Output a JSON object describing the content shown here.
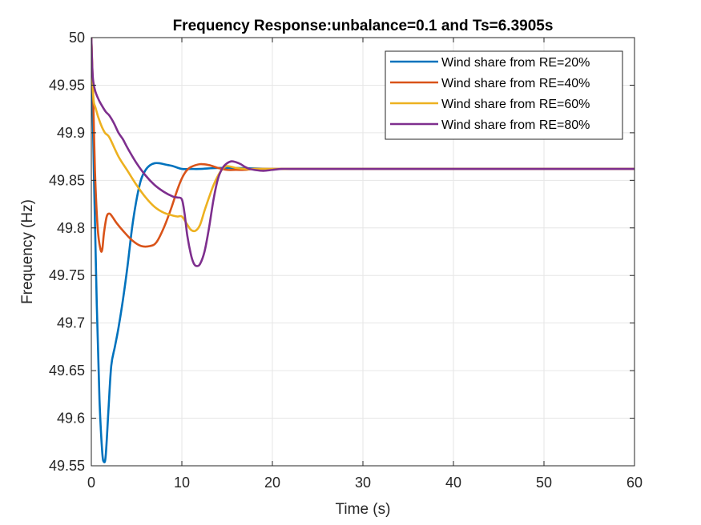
{
  "chart_data": {
    "type": "line",
    "title": "Frequency Response:unbalance=0.1 and Ts=6.3905s",
    "xlabel": "Time (s)",
    "ylabel": "Frequency (Hz)",
    "xlim": [
      0,
      60
    ],
    "ylim": [
      49.55,
      50
    ],
    "xticks": [
      "0",
      "10",
      "20",
      "30",
      "40",
      "50",
      "60"
    ],
    "yticks": [
      "49.55",
      "49.6",
      "49.65",
      "49.7",
      "49.75",
      "49.8",
      "49.85",
      "49.9",
      "49.95",
      "50"
    ],
    "grid": true,
    "legend_position": "top-right",
    "series": [
      {
        "name": "Wind share from RE=20%",
        "color": "#0072BD",
        "x": [
          0,
          0.3,
          0.6,
          0.9,
          1.2,
          1.4,
          1.6,
          1.9,
          2.2,
          2.6,
          3.0,
          3.5,
          4.0,
          4.5,
          5.0,
          5.5,
          6.0,
          6.5,
          7.0,
          7.5,
          8.0,
          8.5,
          9.0,
          10.0,
          11.0,
          12.0,
          14.0,
          16.0,
          20.0,
          25.0,
          30.0,
          40.0,
          50.0,
          60.0
        ],
        "y": [
          50.0,
          49.85,
          49.72,
          49.62,
          49.565,
          49.554,
          49.562,
          49.61,
          49.655,
          49.675,
          49.695,
          49.725,
          49.76,
          49.8,
          49.83,
          49.851,
          49.861,
          49.866,
          49.868,
          49.868,
          49.867,
          49.866,
          49.865,
          49.862,
          49.862,
          49.862,
          49.863,
          49.863,
          49.862,
          49.862,
          49.862,
          49.862,
          49.862,
          49.862
        ]
      },
      {
        "name": "Wind share from RE=40%",
        "color": "#D95319",
        "x": [
          0,
          0.2,
          0.4,
          0.7,
          1.0,
          1.2,
          1.4,
          1.7,
          2.0,
          2.3,
          2.8,
          3.5,
          4.5,
          5.5,
          6.5,
          7.2,
          8.0,
          8.8,
          9.5,
          10.0,
          10.5,
          11.0,
          12.0,
          13.0,
          14.0,
          15.0,
          16.0,
          17.0,
          18.0,
          20.0,
          25.0,
          30.0,
          40.0,
          50.0,
          60.0
        ],
        "y": [
          50.0,
          49.94,
          49.86,
          49.8,
          49.778,
          49.777,
          49.795,
          49.812,
          49.815,
          49.812,
          49.805,
          49.797,
          49.787,
          49.781,
          49.781,
          49.785,
          49.8,
          49.82,
          49.84,
          49.852,
          49.86,
          49.864,
          49.867,
          49.866,
          49.863,
          49.861,
          49.861,
          49.861,
          49.862,
          49.862,
          49.862,
          49.862,
          49.862,
          49.862,
          49.862
        ]
      },
      {
        "name": "Wind share from RE=60%",
        "color": "#EDB120",
        "x": [
          0,
          0.2,
          0.5,
          1.0,
          1.5,
          2.0,
          3.0,
          4.0,
          5.0,
          6.0,
          7.0,
          8.0,
          9.0,
          9.5,
          10.0,
          10.5,
          11.0,
          11.5,
          12.0,
          12.5,
          13.0,
          13.5,
          14.0,
          14.5,
          15.0,
          16.0,
          17.0,
          18.0,
          20.0,
          25.0,
          30.0,
          40.0,
          50.0,
          60.0
        ],
        "y": [
          50.0,
          49.94,
          49.925,
          49.91,
          49.9,
          49.895,
          49.875,
          49.86,
          49.845,
          49.832,
          49.822,
          49.816,
          49.813,
          49.812,
          49.812,
          49.805,
          49.798,
          49.797,
          49.803,
          49.818,
          49.832,
          49.845,
          49.855,
          49.862,
          49.865,
          49.863,
          49.862,
          49.862,
          49.862,
          49.862,
          49.862,
          49.862,
          49.862,
          49.862
        ]
      },
      {
        "name": "Wind share from RE=80%",
        "color": "#7E2F8E",
        "x": [
          0,
          0.15,
          0.4,
          0.8,
          1.2,
          1.6,
          2.0,
          2.5,
          3.0,
          3.5,
          4.0,
          5.0,
          6.0,
          7.0,
          8.0,
          9.0,
          9.5,
          10.0,
          10.3,
          10.6,
          11.0,
          11.3,
          11.6,
          12.0,
          12.5,
          13.0,
          13.5,
          14.0,
          14.5,
          15.0,
          15.5,
          16.0,
          16.5,
          17.0,
          17.5,
          18.0,
          19.0,
          20.0,
          21.0,
          22.0,
          25.0,
          30.0,
          40.0,
          50.0,
          60.0
        ],
        "y": [
          50.0,
          49.96,
          49.945,
          49.935,
          49.928,
          49.922,
          49.918,
          49.91,
          49.9,
          49.893,
          49.884,
          49.868,
          49.855,
          49.845,
          49.838,
          49.833,
          49.832,
          49.83,
          49.815,
          49.792,
          49.772,
          49.763,
          49.76,
          49.762,
          49.775,
          49.8,
          49.83,
          49.852,
          49.863,
          49.868,
          49.87,
          49.869,
          49.867,
          49.864,
          49.862,
          49.861,
          49.86,
          49.861,
          49.862,
          49.862,
          49.862,
          49.862,
          49.862,
          49.862,
          49.862
        ]
      }
    ]
  }
}
